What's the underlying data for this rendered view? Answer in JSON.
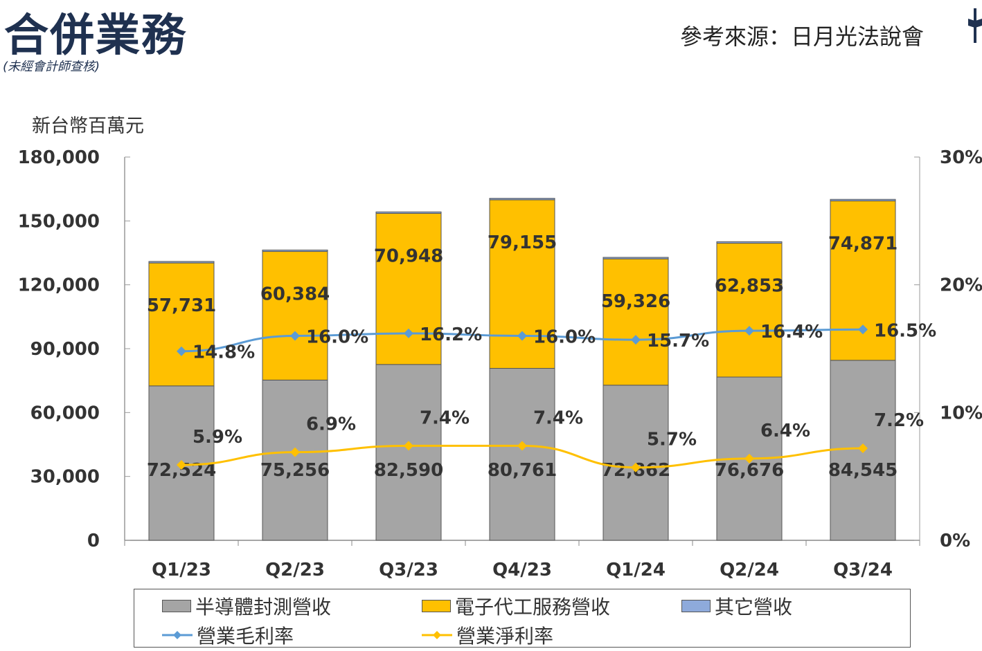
{
  "header": {
    "title": "合併業務",
    "subtitle": "(未經會計師查核)",
    "source": "參考來源：日月光法說會"
  },
  "chart_data": {
    "type": "bar",
    "stacked": true,
    "unit_label": "新台幣百萬元",
    "categories": [
      "Q1/23",
      "Q2/23",
      "Q3/23",
      "Q4/23",
      "Q1/24",
      "Q2/24",
      "Q3/24"
    ],
    "y_left": {
      "min": 0,
      "max": 180000,
      "ticks": [
        "0",
        "30,000",
        "60,000",
        "90,000",
        "120,000",
        "150,000",
        "180,000"
      ]
    },
    "y_right": {
      "min": 0,
      "max": 30,
      "ticks": [
        "0%",
        "10%",
        "20%",
        "30%"
      ]
    },
    "series": [
      {
        "name": "半導體封測營收",
        "kind": "bar",
        "color": "#a5a5a5",
        "values": [
          72524,
          75256,
          82590,
          80761,
          72862,
          76676,
          84545
        ],
        "labels": [
          "72,524",
          "75,256",
          "82,590",
          "80,761",
          "72,862",
          "76,676",
          "84,545"
        ]
      },
      {
        "name": "電子代工服務營收",
        "kind": "bar",
        "color": "#ffc000",
        "values": [
          57731,
          60384,
          70948,
          79155,
          59326,
          62853,
          74871
        ],
        "labels": [
          "57,731",
          "60,384",
          "70,948",
          "79,155",
          "59,326",
          "62,853",
          "74,871"
        ]
      },
      {
        "name": "其它營收",
        "kind": "bar",
        "color": "#8eaadb",
        "values": [
          700,
          700,
          700,
          700,
          700,
          700,
          700
        ]
      },
      {
        "name": "營業毛利率",
        "kind": "line",
        "axis": "right",
        "color": "#5b9bd5",
        "values": [
          14.8,
          16.0,
          16.2,
          16.0,
          15.7,
          16.4,
          16.5
        ],
        "labels": [
          "14.8%",
          "16.0%",
          "16.2%",
          "16.0%",
          "15.7%",
          "16.4%",
          "16.5%"
        ]
      },
      {
        "name": "營業淨利率",
        "kind": "line",
        "axis": "right",
        "color": "#ffc000",
        "values": [
          5.9,
          6.9,
          7.4,
          7.4,
          5.7,
          6.4,
          7.2
        ],
        "labels": [
          "5.9%",
          "6.9%",
          "7.4%",
          "7.4%",
          "5.7%",
          "6.4%",
          "7.2%"
        ]
      }
    ],
    "legend": "bottom"
  }
}
